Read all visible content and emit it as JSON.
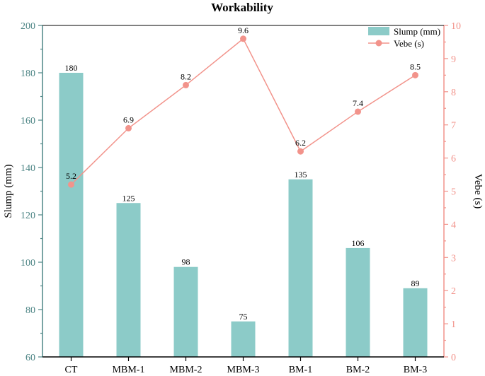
{
  "chart_data": {
    "type": "bar+line",
    "title": "Workability",
    "categories": [
      "CT",
      "MBM-1",
      "MBM-2",
      "MBM-3",
      "BM-1",
      "BM-2",
      "BM-3"
    ],
    "series": [
      {
        "name": "Slump (mm)",
        "type": "bar",
        "axis": "left",
        "values": [
          180,
          125,
          98,
          75,
          135,
          106,
          89
        ]
      },
      {
        "name": "Vebe (s)",
        "type": "line",
        "axis": "right",
        "values": [
          5.2,
          6.9,
          8.2,
          9.6,
          6.2,
          7.4,
          8.5
        ]
      }
    ],
    "left_axis": {
      "label": "Slump (mm)",
      "range": [
        60,
        200
      ],
      "ticks": [
        "60",
        "80",
        "100",
        "120",
        "140",
        "160",
        "180",
        "200"
      ]
    },
    "right_axis": {
      "label": "Vebe (s)",
      "range": [
        0,
        10
      ],
      "ticks": [
        "0",
        "1",
        "2",
        "3",
        "4",
        "5",
        "6",
        "7",
        "8",
        "9",
        "10"
      ]
    },
    "legend_position": "top-right",
    "colors": {
      "bar": "#8ccbc8",
      "line": "#f2938b",
      "left_axis": "#4d8585",
      "right_axis": "#f2938b",
      "text": "#000000"
    }
  }
}
